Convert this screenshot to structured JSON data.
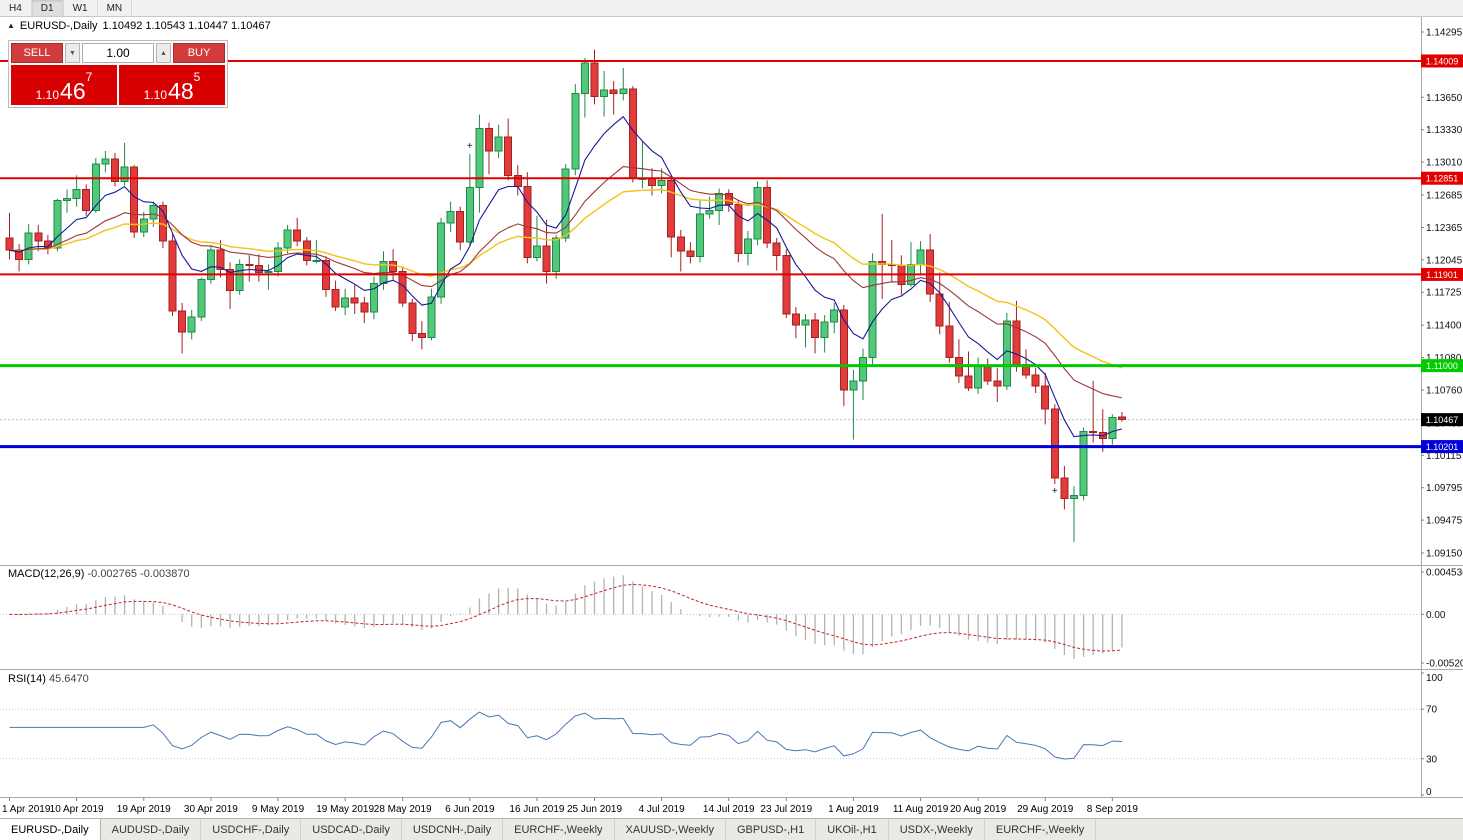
{
  "toolbar": {
    "timeframes": [
      "H4",
      "D1",
      "W1",
      "MN"
    ],
    "active": "D1"
  },
  "chart_header": {
    "collapse_icon": "▲",
    "symbol_period": "EURUSD-,Daily",
    "ohlc": "1.10492 1.10543 1.10447 1.10467"
  },
  "trade_panel": {
    "sell_label": "SELL",
    "buy_label": "BUY",
    "volume": "1.00",
    "spin_down_icon": "▼",
    "spin_up_icon": "▲",
    "sell_price": {
      "prefix": "1.10",
      "big": "46",
      "sup": "7"
    },
    "buy_price": {
      "prefix": "1.10",
      "big": "48",
      "sup": "5"
    }
  },
  "price_axis": {
    "labels": [
      "1.14295",
      "1.13980",
      "1.13650",
      "1.13330",
      "1.13010",
      "1.12685",
      "1.12365",
      "1.12045",
      "1.11725",
      "1.11400",
      "1.11080",
      "1.10760",
      "1.10435",
      "1.10115",
      "1.09795",
      "1.09475",
      "1.09150"
    ]
  },
  "chart_data": {
    "type": "candlestick",
    "symbol": "EURUSD-",
    "timeframe": "Daily",
    "colors": {
      "up": "#53c87b",
      "up_border": "#1d8a4a",
      "down": "#e23b3b",
      "down_border": "#a32020",
      "ma_fast": "#18189a",
      "ma_mid": "#9e3636",
      "ma_slow": "#f2c21a",
      "macd_hist": "#b2b2b2",
      "macd_signal": "#cc2222",
      "rsi": "#4a78b4",
      "current": "#000000"
    },
    "ohlc": [
      [
        1.1226,
        1.1251,
        1.1205,
        1.1214
      ],
      [
        1.1214,
        1.122,
        1.1193,
        1.1205
      ],
      [
        1.1205,
        1.124,
        1.12,
        1.1231
      ],
      [
        1.1231,
        1.1239,
        1.1213,
        1.1223
      ],
      [
        1.1223,
        1.1229,
        1.121,
        1.1216
      ],
      [
        1.1216,
        1.1265,
        1.1213,
        1.1263
      ],
      [
        1.1263,
        1.1274,
        1.1251,
        1.1265
      ],
      [
        1.1265,
        1.1288,
        1.1257,
        1.1274
      ],
      [
        1.1274,
        1.1279,
        1.1248,
        1.1253
      ],
      [
        1.1253,
        1.1305,
        1.1251,
        1.1299
      ],
      [
        1.1299,
        1.1312,
        1.1291,
        1.1304
      ],
      [
        1.1304,
        1.131,
        1.1277,
        1.1282
      ],
      [
        1.1282,
        1.132,
        1.1278,
        1.1296
      ],
      [
        1.1296,
        1.1298,
        1.1226,
        1.1232
      ],
      [
        1.1232,
        1.1252,
        1.1227,
        1.1245
      ],
      [
        1.1245,
        1.1262,
        1.1237,
        1.1258
      ],
      [
        1.1258,
        1.1262,
        1.1216,
        1.1223
      ],
      [
        1.1223,
        1.123,
        1.1149,
        1.1154
      ],
      [
        1.1154,
        1.1162,
        1.1112,
        1.1133
      ],
      [
        1.1133,
        1.1155,
        1.1126,
        1.1148
      ],
      [
        1.1148,
        1.1187,
        1.1144,
        1.1185
      ],
      [
        1.1185,
        1.1219,
        1.1181,
        1.1214
      ],
      [
        1.1214,
        1.1224,
        1.1187,
        1.1195
      ],
      [
        1.1195,
        1.1202,
        1.1156,
        1.1174
      ],
      [
        1.1174,
        1.1205,
        1.117,
        1.12
      ],
      [
        1.12,
        1.1209,
        1.1183,
        1.1199
      ],
      [
        1.1199,
        1.121,
        1.1183,
        1.1192
      ],
      [
        1.1192,
        1.12,
        1.1175,
        1.1193
      ],
      [
        1.1193,
        1.1222,
        1.1188,
        1.1216
      ],
      [
        1.1216,
        1.1239,
        1.1211,
        1.1234
      ],
      [
        1.1234,
        1.1246,
        1.1218,
        1.1223
      ],
      [
        1.1223,
        1.1227,
        1.1199,
        1.1204
      ],
      [
        1.1204,
        1.1224,
        1.1201,
        1.1204
      ],
      [
        1.1204,
        1.1208,
        1.1168,
        1.1175
      ],
      [
        1.1175,
        1.1184,
        1.1154,
        1.1158
      ],
      [
        1.1158,
        1.1176,
        1.115,
        1.1167
      ],
      [
        1.1167,
        1.1181,
        1.1151,
        1.1162
      ],
      [
        1.1162,
        1.1168,
        1.1142,
        1.1153
      ],
      [
        1.1153,
        1.1188,
        1.1146,
        1.1181
      ],
      [
        1.1181,
        1.1213,
        1.1175,
        1.1203
      ],
      [
        1.1203,
        1.1215,
        1.1184,
        1.1193
      ],
      [
        1.1193,
        1.1198,
        1.1158,
        1.1162
      ],
      [
        1.1162,
        1.1166,
        1.1124,
        1.1132
      ],
      [
        1.1132,
        1.1144,
        1.1116,
        1.1128
      ],
      [
        1.1128,
        1.1176,
        1.1125,
        1.1168
      ],
      [
        1.1168,
        1.1246,
        1.1161,
        1.1241
      ],
      [
        1.1241,
        1.1262,
        1.1232,
        1.1252
      ],
      [
        1.1252,
        1.1257,
        1.1214,
        1.1222
      ],
      [
        1.1222,
        1.1309,
        1.1219,
        1.1276
      ],
      [
        1.1276,
        1.1348,
        1.1251,
        1.1334
      ],
      [
        1.1334,
        1.134,
        1.1289,
        1.1312
      ],
      [
        1.1312,
        1.1338,
        1.1305,
        1.1326
      ],
      [
        1.1326,
        1.1344,
        1.1283,
        1.1288
      ],
      [
        1.1288,
        1.1298,
        1.1268,
        1.1277
      ],
      [
        1.1277,
        1.1291,
        1.1201,
        1.1207
      ],
      [
        1.1207,
        1.1248,
        1.1203,
        1.1218
      ],
      [
        1.1218,
        1.1244,
        1.1181,
        1.1193
      ],
      [
        1.1193,
        1.1229,
        1.1186,
        1.1226
      ],
      [
        1.1226,
        1.1299,
        1.1222,
        1.1294
      ],
      [
        1.1294,
        1.1378,
        1.1288,
        1.1369
      ],
      [
        1.1369,
        1.1404,
        1.1345,
        1.1399
      ],
      [
        1.1399,
        1.1412,
        1.1358,
        1.1366
      ],
      [
        1.1366,
        1.1391,
        1.1346,
        1.1372
      ],
      [
        1.1372,
        1.1381,
        1.1348,
        1.1369
      ],
      [
        1.1369,
        1.1394,
        1.1362,
        1.1373
      ],
      [
        1.1373,
        1.1376,
        1.1281,
        1.1285
      ],
      [
        1.1285,
        1.1322,
        1.1275,
        1.1285
      ],
      [
        1.1285,
        1.1295,
        1.1268,
        1.1278
      ],
      [
        1.1278,
        1.1295,
        1.127,
        1.1283
      ],
      [
        1.1283,
        1.1286,
        1.1207,
        1.1227
      ],
      [
        1.1227,
        1.1234,
        1.1193,
        1.1213
      ],
      [
        1.1213,
        1.1222,
        1.1201,
        1.1208
      ],
      [
        1.1208,
        1.1264,
        1.1202,
        1.125
      ],
      [
        1.125,
        1.1267,
        1.1245,
        1.1253
      ],
      [
        1.1253,
        1.1275,
        1.1239,
        1.127
      ],
      [
        1.127,
        1.1274,
        1.1252,
        1.1259
      ],
      [
        1.1259,
        1.1263,
        1.1202,
        1.1211
      ],
      [
        1.1211,
        1.1233,
        1.1199,
        1.1225
      ],
      [
        1.1225,
        1.1282,
        1.1219,
        1.1276
      ],
      [
        1.1276,
        1.1283,
        1.1216,
        1.1221
      ],
      [
        1.1221,
        1.1226,
        1.1194,
        1.1209
      ],
      [
        1.1209,
        1.1215,
        1.1147,
        1.1151
      ],
      [
        1.1151,
        1.1158,
        1.1127,
        1.114
      ],
      [
        1.114,
        1.1151,
        1.1118,
        1.1145
      ],
      [
        1.1145,
        1.1152,
        1.1112,
        1.1128
      ],
      [
        1.1128,
        1.115,
        1.1113,
        1.1143
      ],
      [
        1.1143,
        1.1162,
        1.1132,
        1.1155
      ],
      [
        1.1155,
        1.116,
        1.106,
        1.1076
      ],
      [
        1.1076,
        1.1096,
        1.1027,
        1.1085
      ],
      [
        1.1085,
        1.1117,
        1.1066,
        1.1108
      ],
      [
        1.1108,
        1.1211,
        1.1101,
        1.1203
      ],
      [
        1.1203,
        1.125,
        1.1166,
        1.12
      ],
      [
        1.12,
        1.1224,
        1.1183,
        1.1199
      ],
      [
        1.1199,
        1.1209,
        1.117,
        1.118
      ],
      [
        1.118,
        1.1222,
        1.1178,
        1.12
      ],
      [
        1.12,
        1.1223,
        1.1189,
        1.1214
      ],
      [
        1.1214,
        1.123,
        1.1163,
        1.1171
      ],
      [
        1.1171,
        1.1192,
        1.1131,
        1.1139
      ],
      [
        1.1139,
        1.1163,
        1.1103,
        1.1108
      ],
      [
        1.1108,
        1.1126,
        1.1083,
        1.109
      ],
      [
        1.109,
        1.1114,
        1.1075,
        1.1078
      ],
      [
        1.1078,
        1.1108,
        1.1072,
        1.1099
      ],
      [
        1.1099,
        1.1107,
        1.1081,
        1.1085
      ],
      [
        1.1085,
        1.1098,
        1.1064,
        1.108
      ],
      [
        1.108,
        1.1152,
        1.1076,
        1.1144
      ],
      [
        1.1144,
        1.1164,
        1.1094,
        1.1101
      ],
      [
        1.1101,
        1.1116,
        1.1087,
        1.1091
      ],
      [
        1.1091,
        1.1098,
        1.1073,
        1.108
      ],
      [
        1.108,
        1.1093,
        1.1042,
        1.1057
      ],
      [
        1.1057,
        1.1062,
        1.0983,
        1.0989
      ],
      [
        1.0989,
        1.1001,
        1.0958,
        1.0969
      ],
      [
        1.0969,
        1.0981,
        1.0926,
        1.0972
      ],
      [
        1.0972,
        1.1039,
        1.0967,
        1.1035
      ],
      [
        1.1035,
        1.1085,
        1.1024,
        1.1034
      ],
      [
        1.1034,
        1.1057,
        1.1015,
        1.1028
      ],
      [
        1.1028,
        1.1052,
        1.1022,
        1.1049
      ],
      [
        1.10492,
        1.10543,
        1.10447,
        1.10467
      ]
    ],
    "x_ticks": [
      {
        "i": 0,
        "label": "1 Apr 2019"
      },
      {
        "i": 7,
        "label": "10 Apr 2019"
      },
      {
        "i": 14,
        "label": "19 Apr 2019"
      },
      {
        "i": 21,
        "label": "30 Apr 2019"
      },
      {
        "i": 28,
        "label": "9 May 2019"
      },
      {
        "i": 35,
        "label": "19 May 2019"
      },
      {
        "i": 41,
        "label": "28 May 2019"
      },
      {
        "i": 48,
        "label": "6 Jun 2019"
      },
      {
        "i": 55,
        "label": "16 Jun 2019"
      },
      {
        "i": 61,
        "label": "25 Jun 2019"
      },
      {
        "i": 68,
        "label": "4 Jul 2019"
      },
      {
        "i": 75,
        "label": "14 Jul 2019"
      },
      {
        "i": 81,
        "label": "23 Jul 2019"
      },
      {
        "i": 88,
        "label": "1 Aug 2019"
      },
      {
        "i": 95,
        "label": "11 Aug 2019"
      },
      {
        "i": 101,
        "label": "20 Aug 2019"
      },
      {
        "i": 108,
        "label": "29 Aug 2019"
      },
      {
        "i": 115,
        "label": "8 Sep 2019"
      }
    ],
    "h_lines": [
      {
        "price": 1.14009,
        "label": "1.14009",
        "color": "#e00000",
        "width": 2
      },
      {
        "price": 1.12851,
        "label": "1.12851",
        "color": "#e00000",
        "width": 2
      },
      {
        "price": 1.11901,
        "label": "1.11901",
        "color": "#e00000",
        "width": 2
      },
      {
        "price": 1.11,
        "label": "1.11000",
        "color": "#00ca00",
        "width": 3
      },
      {
        "price": 1.10201,
        "label": "1.10201",
        "color": "#0000d6",
        "width": 3
      }
    ],
    "current_price": {
      "value": 1.10467,
      "label": "1.10467"
    },
    "moving_averages": [
      {
        "period": 34,
        "color": "#f2c21a",
        "width": 1.4
      },
      {
        "period": 21,
        "color": "#9e3636",
        "width": 1.1
      },
      {
        "period": 8,
        "color": "#18189a",
        "width": 1.1
      }
    ],
    "indicators": {
      "macd": {
        "name": "MACD(12,26,9)",
        "values_text": " -0.002765 -0.003870",
        "fast": 12,
        "slow": 26,
        "signal": 9,
        "axis_labels": [
          "0.004536",
          "0.00",
          "-0.005205"
        ],
        "axis_values": [
          0.004536,
          0,
          -0.005205
        ]
      },
      "rsi": {
        "name": "RSI(14)",
        "value_text": " 45.6470",
        "period": 14,
        "axis_labels": [
          "100",
          "70",
          "30",
          "0"
        ],
        "axis_values": [
          100,
          70,
          30,
          0
        ],
        "levels": [
          70,
          30
        ]
      }
    },
    "markers": [
      {
        "bar": 48,
        "pos": "above",
        "glyph": "+"
      },
      {
        "bar": 109,
        "pos": "below",
        "glyph": "+"
      }
    ]
  },
  "tabs": [
    {
      "label": "EURUSD-,Daily",
      "active": true
    },
    {
      "label": "AUDUSD-,Daily"
    },
    {
      "label": "USDCHF-,Daily"
    },
    {
      "label": "USDCAD-,Daily"
    },
    {
      "label": "USDCNH-,Daily"
    },
    {
      "label": "EURCHF-,Weekly"
    },
    {
      "label": "XAUUSD-,Weekly"
    },
    {
      "label": "GBPUSD-,H1"
    },
    {
      "label": "UKOil-,H1"
    },
    {
      "label": "USDX-,Weekly"
    },
    {
      "label": "EURCHF-,Weekly"
    }
  ]
}
